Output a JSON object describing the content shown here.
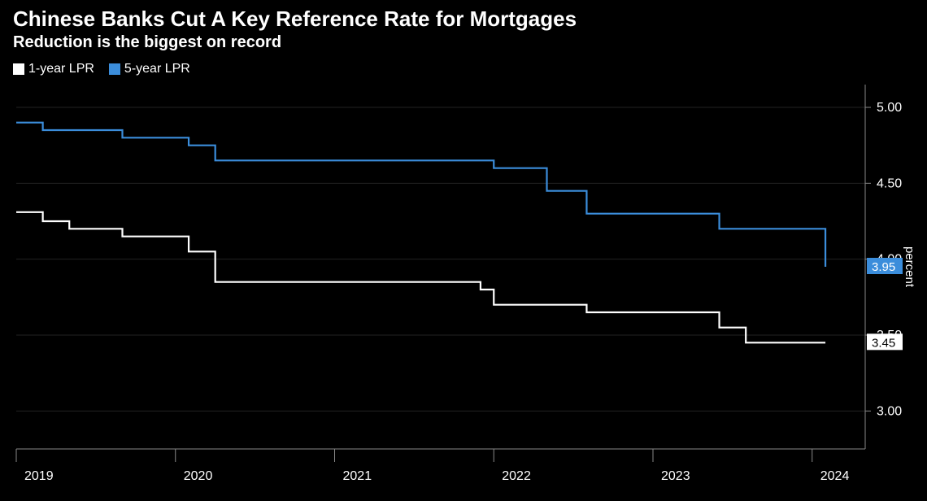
{
  "header": {
    "title": "Chinese Banks Cut A Key Reference Rate for Mortgages",
    "subtitle": "Reduction is the biggest on record"
  },
  "legend": {
    "items": [
      {
        "label": "1-year LPR",
        "color": "#ffffff"
      },
      {
        "label": "5-year LPR",
        "color": "#3b8ddb"
      }
    ]
  },
  "chart": {
    "type": "line",
    "background_color": "#000000",
    "grid_color": "#222222",
    "axis_color": "#888888",
    "text_color": "#ffffff",
    "line_width": 2.2,
    "y_axis": {
      "label": "percent",
      "min": 2.75,
      "max": 5.15,
      "ticks": [
        3.0,
        3.5,
        4.0,
        4.5,
        5.0
      ],
      "tick_labels": [
        "3.00",
        "3.50",
        "4.00",
        "4.50",
        "5.00"
      ]
    },
    "x_axis": {
      "min": 0,
      "max": 64,
      "ticks": [
        0,
        12,
        24,
        36,
        48,
        60
      ],
      "tick_labels": [
        "2019",
        "2020",
        "2021",
        "2022",
        "2023",
        "2024"
      ]
    },
    "series": [
      {
        "name": "1-year LPR",
        "color": "#ffffff",
        "end_label": "3.45",
        "end_label_bg": "#ffffff",
        "end_label_text": "#000000",
        "points": [
          [
            0,
            4.31
          ],
          [
            1,
            4.31
          ],
          [
            2,
            4.25
          ],
          [
            3,
            4.25
          ],
          [
            4,
            4.2
          ],
          [
            5,
            4.2
          ],
          [
            6,
            4.2
          ],
          [
            7,
            4.2
          ],
          [
            8,
            4.15
          ],
          [
            9,
            4.15
          ],
          [
            10,
            4.15
          ],
          [
            11,
            4.15
          ],
          [
            12,
            4.15
          ],
          [
            13,
            4.05
          ],
          [
            14,
            4.05
          ],
          [
            15,
            3.85
          ],
          [
            16,
            3.85
          ],
          [
            17,
            3.85
          ],
          [
            18,
            3.85
          ],
          [
            19,
            3.85
          ],
          [
            20,
            3.85
          ],
          [
            21,
            3.85
          ],
          [
            22,
            3.85
          ],
          [
            23,
            3.85
          ],
          [
            24,
            3.85
          ],
          [
            25,
            3.85
          ],
          [
            26,
            3.85
          ],
          [
            27,
            3.85
          ],
          [
            28,
            3.85
          ],
          [
            29,
            3.85
          ],
          [
            30,
            3.85
          ],
          [
            31,
            3.85
          ],
          [
            32,
            3.85
          ],
          [
            33,
            3.85
          ],
          [
            34,
            3.85
          ],
          [
            35,
            3.8
          ],
          [
            36,
            3.7
          ],
          [
            37,
            3.7
          ],
          [
            38,
            3.7
          ],
          [
            39,
            3.7
          ],
          [
            40,
            3.7
          ],
          [
            41,
            3.7
          ],
          [
            42,
            3.7
          ],
          [
            43,
            3.65
          ],
          [
            44,
            3.65
          ],
          [
            45,
            3.65
          ],
          [
            46,
            3.65
          ],
          [
            47,
            3.65
          ],
          [
            48,
            3.65
          ],
          [
            49,
            3.65
          ],
          [
            50,
            3.65
          ],
          [
            51,
            3.65
          ],
          [
            52,
            3.65
          ],
          [
            53,
            3.55
          ],
          [
            54,
            3.55
          ],
          [
            55,
            3.45
          ],
          [
            56,
            3.45
          ],
          [
            57,
            3.45
          ],
          [
            58,
            3.45
          ],
          [
            59,
            3.45
          ],
          [
            60,
            3.45
          ],
          [
            61,
            3.45
          ]
        ]
      },
      {
        "name": "5-year LPR",
        "color": "#3b8ddb",
        "end_label": "3.95",
        "end_label_bg": "#3b8ddb",
        "end_label_text": "#ffffff",
        "points": [
          [
            0,
            4.9
          ],
          [
            1,
            4.9
          ],
          [
            2,
            4.85
          ],
          [
            3,
            4.85
          ],
          [
            4,
            4.85
          ],
          [
            5,
            4.85
          ],
          [
            6,
            4.85
          ],
          [
            7,
            4.85
          ],
          [
            8,
            4.8
          ],
          [
            9,
            4.8
          ],
          [
            10,
            4.8
          ],
          [
            11,
            4.8
          ],
          [
            12,
            4.8
          ],
          [
            13,
            4.75
          ],
          [
            14,
            4.75
          ],
          [
            15,
            4.65
          ],
          [
            16,
            4.65
          ],
          [
            17,
            4.65
          ],
          [
            18,
            4.65
          ],
          [
            19,
            4.65
          ],
          [
            20,
            4.65
          ],
          [
            21,
            4.65
          ],
          [
            22,
            4.65
          ],
          [
            23,
            4.65
          ],
          [
            24,
            4.65
          ],
          [
            25,
            4.65
          ],
          [
            26,
            4.65
          ],
          [
            27,
            4.65
          ],
          [
            28,
            4.65
          ],
          [
            29,
            4.65
          ],
          [
            30,
            4.65
          ],
          [
            31,
            4.65
          ],
          [
            32,
            4.65
          ],
          [
            33,
            4.65
          ],
          [
            34,
            4.65
          ],
          [
            35,
            4.65
          ],
          [
            36,
            4.6
          ],
          [
            37,
            4.6
          ],
          [
            38,
            4.6
          ],
          [
            39,
            4.6
          ],
          [
            40,
            4.45
          ],
          [
            41,
            4.45
          ],
          [
            42,
            4.45
          ],
          [
            43,
            4.3
          ],
          [
            44,
            4.3
          ],
          [
            45,
            4.3
          ],
          [
            46,
            4.3
          ],
          [
            47,
            4.3
          ],
          [
            48,
            4.3
          ],
          [
            49,
            4.3
          ],
          [
            50,
            4.3
          ],
          [
            51,
            4.3
          ],
          [
            52,
            4.3
          ],
          [
            53,
            4.2
          ],
          [
            54,
            4.2
          ],
          [
            55,
            4.2
          ],
          [
            56,
            4.2
          ],
          [
            57,
            4.2
          ],
          [
            58,
            4.2
          ],
          [
            59,
            4.2
          ],
          [
            60,
            4.2
          ],
          [
            61,
            3.95
          ]
        ]
      }
    ]
  }
}
